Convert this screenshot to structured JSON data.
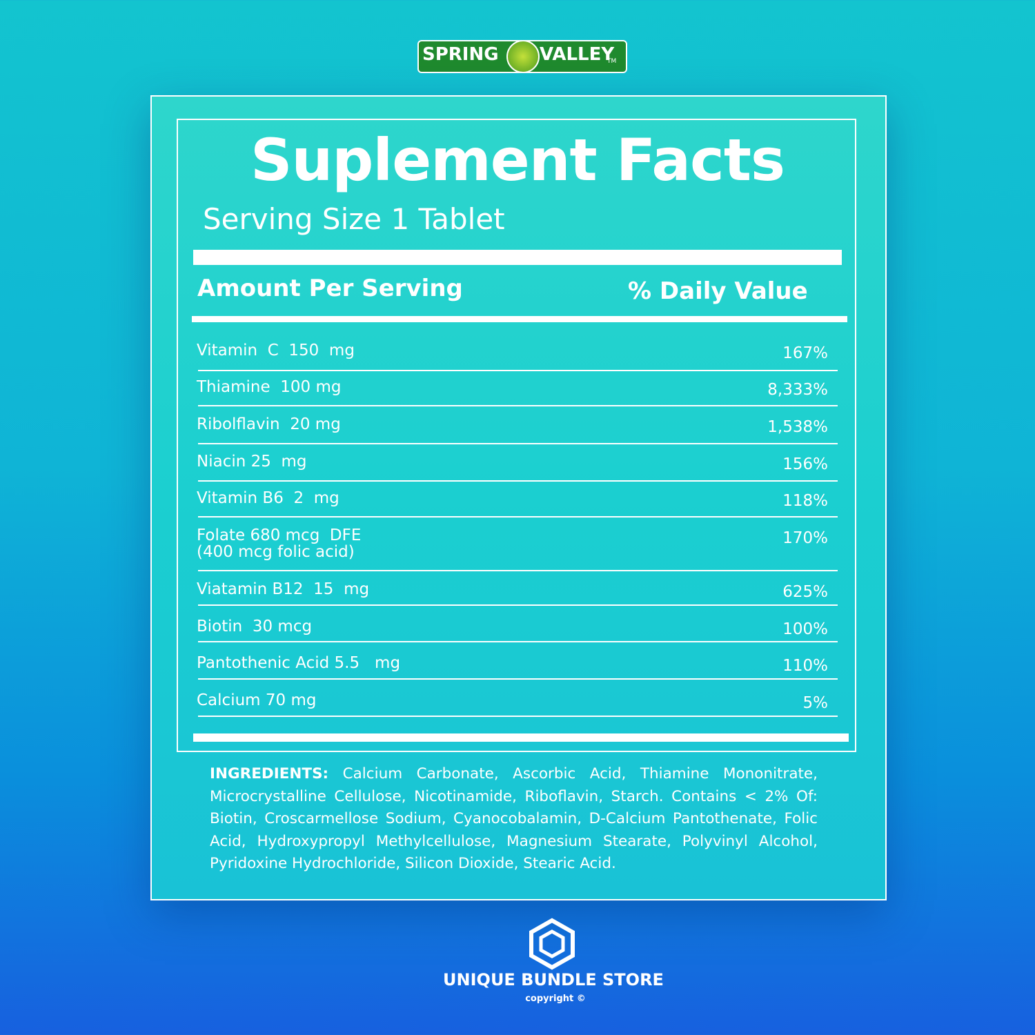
{
  "logo": {
    "left": "SPRING",
    "right": "VALLEY",
    "mark": "TM"
  },
  "panel": {
    "title": "Suplement Facts",
    "serving": "Serving Size 1 Tablet",
    "header": {
      "amount": "Amount Per Serving",
      "daily_value": "% Daily Value"
    },
    "rows": [
      {
        "name": "Vitamin  C  150  mg",
        "dv": "167%"
      },
      {
        "name": "Thiamine  100 mg",
        "dv": "8,333%"
      },
      {
        "name": "Ribolflavin  20 mg",
        "dv": "1,538%"
      },
      {
        "name": "Niacin 25  mg",
        "dv": "156%"
      },
      {
        "name": "Vitamin B6  2  mg",
        "dv": "118%"
      },
      {
        "name": "Folate 680 mcg  DFE",
        "note": "(400 mcg folic acid)",
        "dv": "170%"
      },
      {
        "name": "Viatamin B12  15  mg",
        "dv": "625%"
      },
      {
        "name": "Biotin  30 mcg",
        "dv": "100%"
      },
      {
        "name": "Pantothenic Acid 5.5   mg",
        "dv": "110%"
      },
      {
        "name": "Calcium 70 mg",
        "dv": "5%"
      }
    ]
  },
  "ingredients": {
    "label": "INGREDIENTS:",
    "text": "Calcium Carbonate, Ascorbic Acid, Thiamine Mononitrate, Microcrystalline Cellulose, Nicotinamide, Riboflavin, Starch. Contains < 2% Of: Biotin, Croscarmellose Sodium, Cyanocobalamin, D-Calcium Pantothenate, Folic Acid, Hydroxypropyl Methylcellulose, Magnesium Stearate, Polyvinyl Alcohol, Pyridoxine Hydrochloride, Silicon Dioxide, Stearic Acid."
  },
  "footer": {
    "store": "UNIQUE BUNDLE STORE",
    "copyright": "copyright ©"
  }
}
